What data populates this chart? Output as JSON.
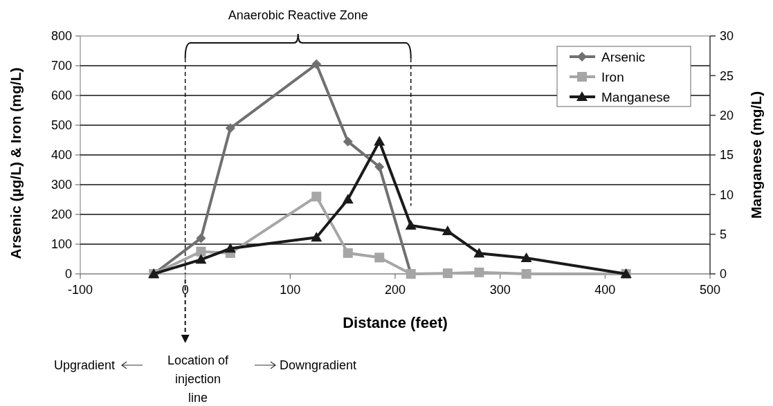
{
  "chart_data": {
    "type": "line",
    "xlabel": "Distance (feet)",
    "ylabel": "Arsenic (µg/L) & Iron (mg/L)",
    "y2label": "Manganese (mg/L)",
    "xlim": [
      -100,
      500
    ],
    "xticks": [
      -100,
      0,
      100,
      200,
      300,
      400,
      500
    ],
    "ylim": [
      0,
      800
    ],
    "yticks": [
      0,
      100,
      200,
      300,
      400,
      500,
      600,
      700,
      800
    ],
    "y2lim": [
      0,
      30
    ],
    "y2ticks": [
      0,
      5,
      10,
      15,
      20,
      25,
      30
    ],
    "grid": "y",
    "legend": "top right",
    "series": [
      {
        "name": "Arsenic",
        "color": "#707070",
        "marker": "diamond",
        "x": [
          -30,
          15,
          43,
          125,
          155,
          185,
          215
        ],
        "values": [
          0,
          120,
          490,
          705,
          445,
          360,
          0
        ]
      },
      {
        "name": "Iron",
        "color": "#a6a6a6",
        "marker": "square",
        "x": [
          -30,
          15,
          43,
          125,
          155,
          185,
          215,
          250,
          280,
          325,
          420
        ],
        "values": [
          0,
          75,
          70,
          260,
          70,
          55,
          0,
          2,
          5,
          0,
          0
        ]
      },
      {
        "name": "Manganese",
        "color": "#1a1a1a",
        "marker": "triangle",
        "axis": "y2",
        "x": [
          -30,
          15,
          43,
          125,
          155,
          185,
          215,
          250,
          280,
          325,
          420
        ],
        "values": [
          0,
          1.8,
          3.2,
          4.6,
          9.4,
          16.7,
          6.1,
          5.4,
          2.6,
          2,
          0
        ]
      }
    ],
    "ref_lines": [
      {
        "axis": "x",
        "value": 0,
        "line_style": "dashed"
      },
      {
        "axis": "x",
        "value": 215,
        "line_style": "dashed"
      }
    ],
    "annotations": [
      "Anaerobic Reactive Zone",
      "Upgradient",
      "Location of injection line",
      "Downgradient"
    ]
  }
}
